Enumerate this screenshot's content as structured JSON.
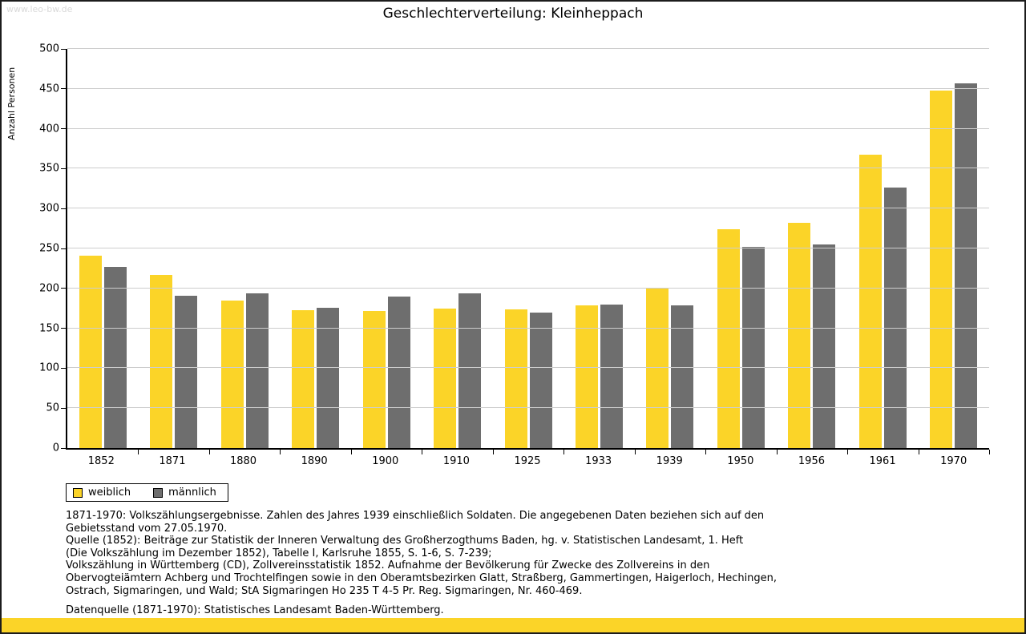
{
  "watermark": "www.leo-bw.de",
  "colors": {
    "brand_yellow": "#FBD428",
    "female_bar": "#FBD428",
    "male_bar": "#6E6E6E",
    "grid": "#CDCDCD"
  },
  "chart_data": {
    "type": "bar",
    "title": "Geschlechterverteilung: Kleinheppach",
    "xlabel": "",
    "ylabel": "Anzahl Personen",
    "ylim": [
      0,
      500
    ],
    "ytick_step": 50,
    "grid": true,
    "legend_position": "bottom-left",
    "categories": [
      "1852",
      "1871",
      "1880",
      "1890",
      "1900",
      "1910",
      "1925",
      "1933",
      "1939",
      "1950",
      "1956",
      "1961",
      "1970"
    ],
    "series": [
      {
        "name": "weiblich",
        "key": "weiblich",
        "color": "#FBD428",
        "values": [
          241,
          217,
          185,
          173,
          172,
          175,
          174,
          179,
          200,
          274,
          282,
          367,
          448
        ]
      },
      {
        "name": "männlich",
        "key": "maennlich",
        "color": "#6E6E6E",
        "values": [
          227,
          191,
          194,
          176,
          190,
          194,
          170,
          180,
          179,
          252,
          255,
          326,
          457
        ]
      }
    ]
  },
  "notes": [
    "1871-1970: Volkszählungsergebnisse. Zahlen des Jahres 1939 einschließlich Soldaten. Die angegebenen Daten beziehen sich auf den",
    "Gebietsstand vom 27.05.1970.",
    "Quelle (1852): Beiträge zur Statistik der Inneren Verwaltung des Großherzogthums Baden, hg. v. Statistischen Landesamt, 1. Heft",
    "(Die Volkszählung im Dezember 1852), Tabelle I, Karlsruhe 1855, S. 1-6, S. 7-239;",
    "Volkszählung in Württemberg (CD), Zollvereinsstatistik 1852. Aufnahme der Bevölkerung für Zwecke des Zollvereins in den",
    "Obervogteiämtern Achberg und Trochtelfingen sowie in den Oberamtsbezirken Glatt, Straßberg, Gammertingen, Haigerloch, Hechingen,",
    "Ostrach, Sigmaringen, und Wald; StA Sigmaringen Ho 235 T 4-5 Pr. Reg. Sigmaringen, Nr. 460-469."
  ],
  "datasource": "Datenquelle (1871-1970): Statistisches Landesamt Baden-Württemberg."
}
